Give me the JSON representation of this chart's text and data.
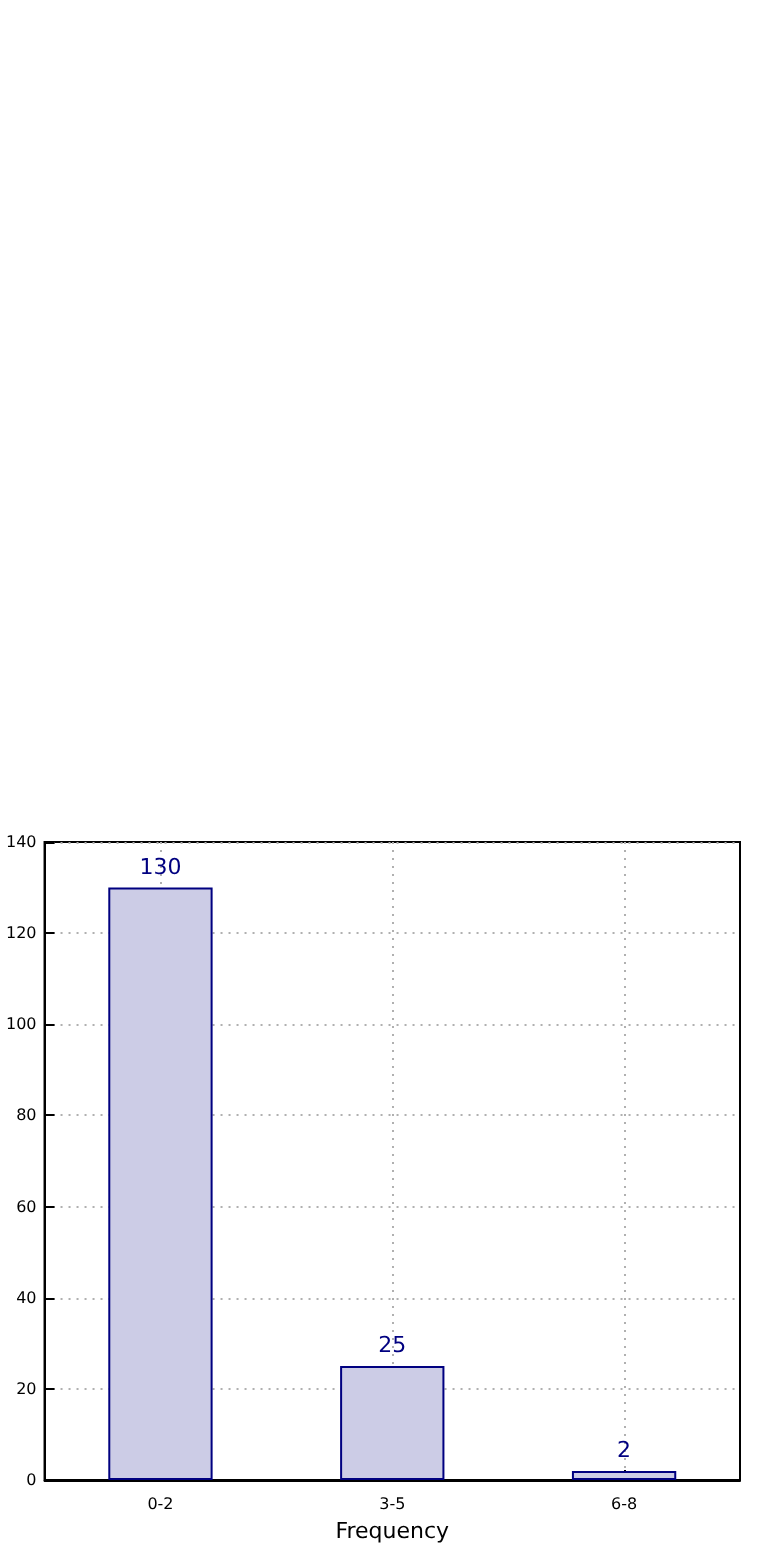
{
  "chart_data": {
    "type": "bar",
    "xlabel": "Frequency",
    "categories": [
      "0-2",
      "3-5",
      "6-8"
    ],
    "series": [
      {
        "color": "#ccccE6",
        "values": [
          130,
          25,
          2
        ]
      }
    ],
    "ylim": [
      0,
      140
    ],
    "yticks": [
      0,
      20,
      40,
      60,
      80,
      100,
      120,
      140
    ],
    "grid": true,
    "data_labels": true
  }
}
